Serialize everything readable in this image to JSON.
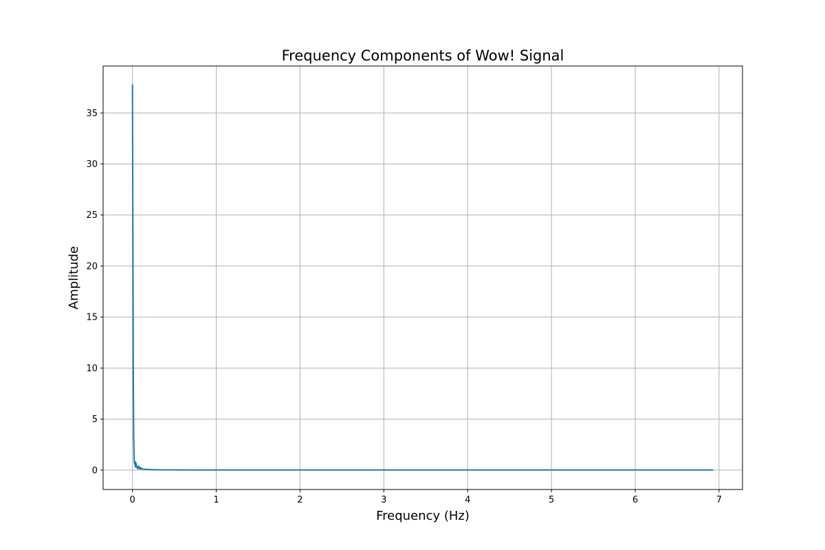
{
  "chart_data": {
    "type": "line",
    "title": "Frequency Components of Wow! Signal",
    "xlabel": "Frequency (Hz)",
    "ylabel": "Amplitude",
    "xlim": [
      -0.35,
      7.28
    ],
    "ylim": [
      -1.9,
      39.6
    ],
    "xticks": [
      0,
      1,
      2,
      3,
      4,
      5,
      6,
      7
    ],
    "yticks": [
      0,
      5,
      10,
      15,
      20,
      25,
      30,
      35
    ],
    "grid": true,
    "series": [
      {
        "color": "#1f77b4",
        "x": [
          0,
          0.005,
          0.01,
          0.015,
          0.02,
          0.025,
          0.03,
          0.035,
          0.04,
          0.05,
          0.06,
          0.07,
          0.08,
          0.09,
          0.1,
          0.11,
          0.12,
          0.14,
          0.16,
          0.18,
          0.2,
          0.25,
          0.3,
          0.4,
          0.5,
          0.75,
          1,
          2,
          3,
          4,
          5,
          6,
          6.93
        ],
        "y": [
          37.8,
          24.0,
          9.5,
          3.2,
          1.2,
          0.6,
          0.8,
          0.3,
          0.75,
          0.35,
          0.15,
          0.4,
          0.12,
          0.28,
          0.1,
          0.2,
          0.08,
          0.1,
          0.06,
          0.08,
          0.05,
          0.04,
          0.03,
          0.02,
          0.02,
          0.015,
          0.01,
          0.01,
          0.01,
          0.01,
          0.01,
          0.01,
          0.01
        ]
      }
    ]
  }
}
